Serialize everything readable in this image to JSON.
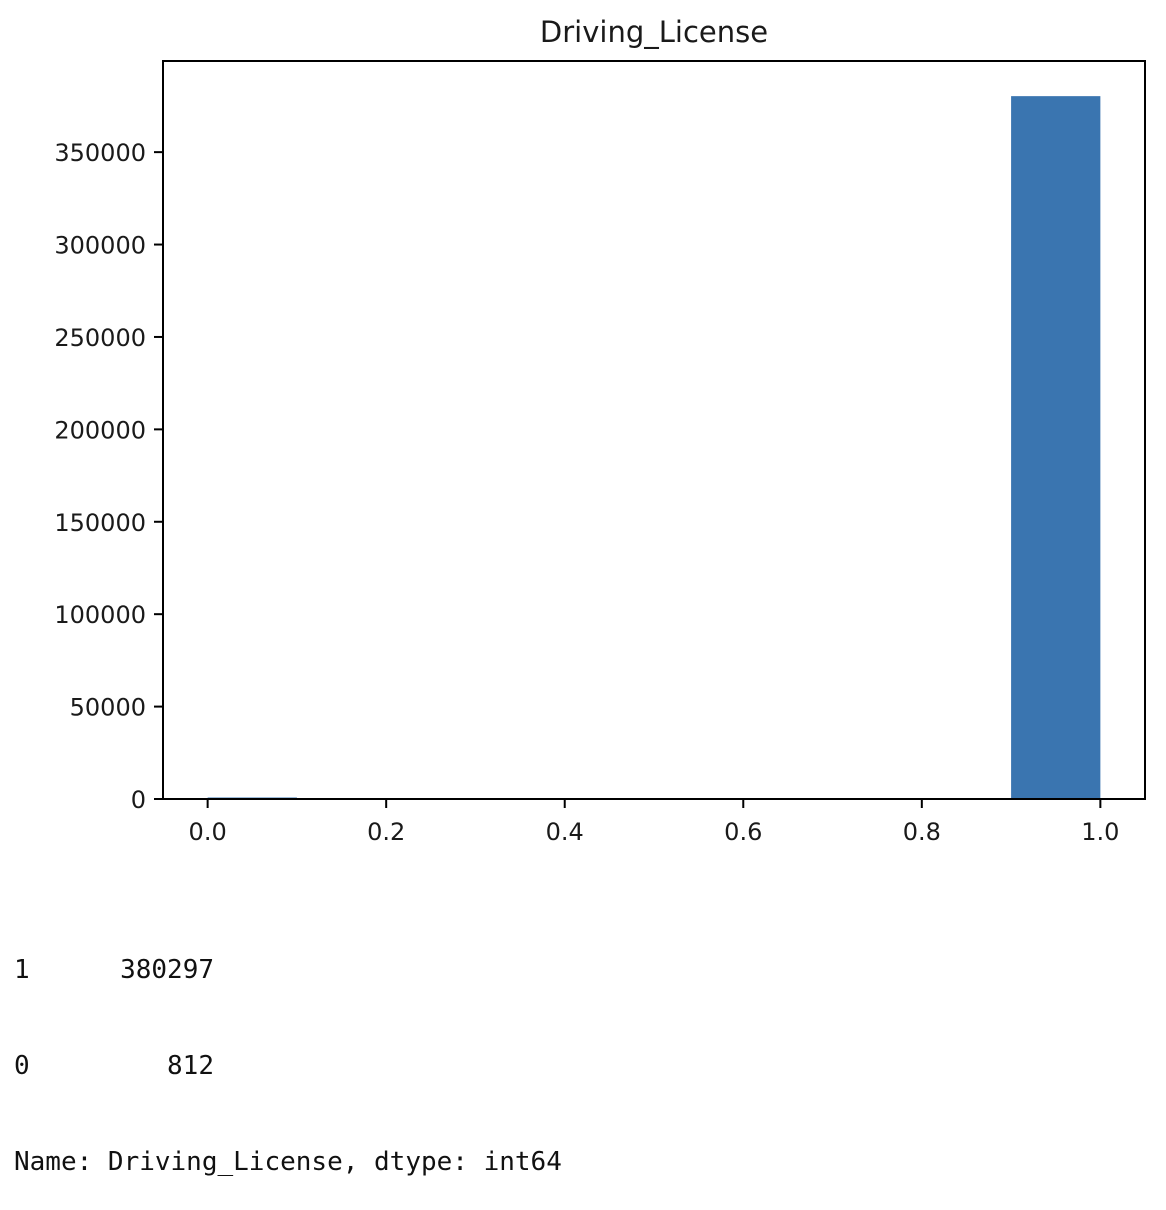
{
  "chart_data": {
    "type": "bar",
    "title": "Driving_License",
    "xlabel": "",
    "ylabel": "",
    "x_ticks": [
      "0.0",
      "0.2",
      "0.4",
      "0.6",
      "0.8",
      "1.0"
    ],
    "y_ticks": [
      "0",
      "50000",
      "100000",
      "150000",
      "200000",
      "250000",
      "300000",
      "350000"
    ],
    "xlim": [
      -0.05,
      1.05
    ],
    "ylim": [
      0,
      399311.85
    ],
    "bins": [
      {
        "x0": 0.0,
        "x1": 0.1,
        "value": 812
      },
      {
        "x0": 0.1,
        "x1": 0.2,
        "value": 0
      },
      {
        "x0": 0.2,
        "x1": 0.3,
        "value": 0
      },
      {
        "x0": 0.3,
        "x1": 0.4,
        "value": 0
      },
      {
        "x0": 0.4,
        "x1": 0.5,
        "value": 0
      },
      {
        "x0": 0.5,
        "x1": 0.6,
        "value": 0
      },
      {
        "x0": 0.6,
        "x1": 0.7,
        "value": 0
      },
      {
        "x0": 0.7,
        "x1": 0.8,
        "value": 0
      },
      {
        "x0": 0.8,
        "x1": 0.9,
        "value": 0
      },
      {
        "x0": 0.9,
        "x1": 1.0,
        "value": 380297
      }
    ],
    "bar_color": "#3a75b0",
    "grid": false,
    "legend": "none"
  },
  "output": {
    "rows": [
      {
        "key": "1",
        "value": "380297"
      },
      {
        "key": "0",
        "value": "812"
      }
    ],
    "footer": "Name: Driving_License, dtype: int64"
  }
}
